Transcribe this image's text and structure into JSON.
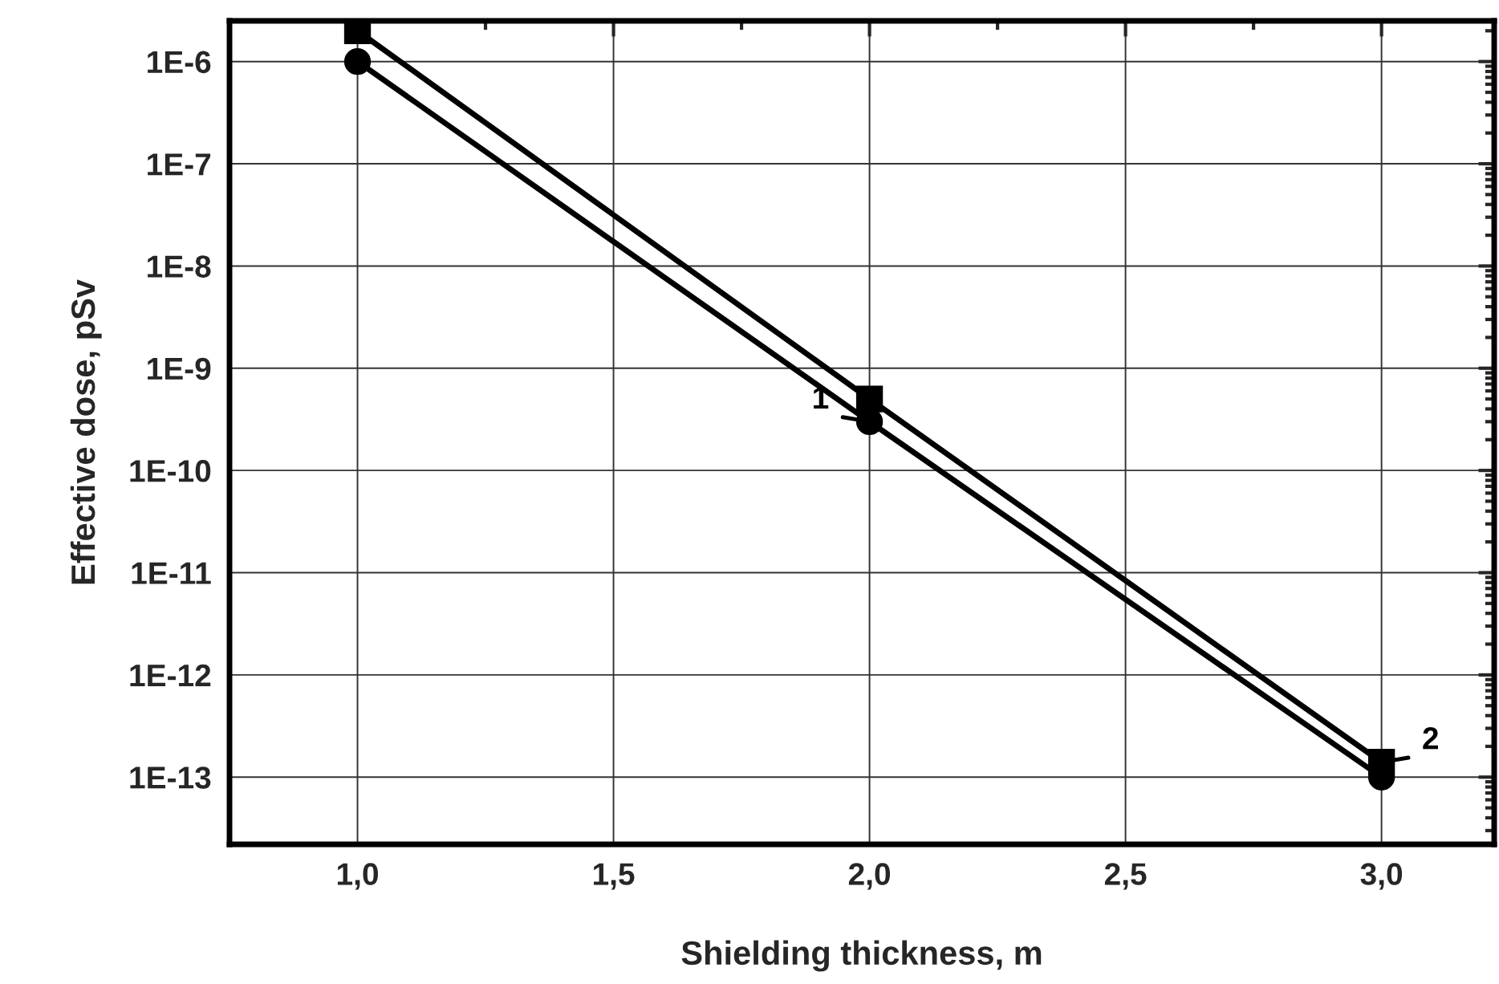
{
  "chart_data": {
    "type": "line",
    "xlabel": "Shielding thickness, m",
    "ylabel": "Effective dose, pSv",
    "log": "y",
    "grid": true,
    "x": [
      1.0,
      2.0,
      3.0
    ],
    "series": [
      {
        "name": "2",
        "color": "#000000",
        "marker": "square",
        "values": [
          2e-06,
          5e-10,
          1.4e-13
        ]
      },
      {
        "name": "1",
        "color": "#000000",
        "marker": "circle",
        "values": [
          1e-06,
          3e-10,
          1e-13
        ]
      }
    ],
    "xlim": [
      0.75,
      3.22
    ],
    "xticks": [
      {
        "value": 1.0,
        "label": "1,0"
      },
      {
        "value": 1.5,
        "label": "1,5"
      },
      {
        "value": 2.0,
        "label": "2,0"
      },
      {
        "value": 2.5,
        "label": "2,5"
      },
      {
        "value": 3.0,
        "label": "3,0"
      }
    ],
    "ylim": [
      2.2e-14,
      2.5e-06
    ],
    "yticks": [
      {
        "value": 1e-13,
        "label": "1E-13"
      },
      {
        "value": 1e-12,
        "label": "1E-12"
      },
      {
        "value": 1e-11,
        "label": "1E-11"
      },
      {
        "value": 1e-10,
        "label": "1E-10"
      },
      {
        "value": 1e-09,
        "label": "1E-9"
      },
      {
        "value": 1e-08,
        "label": "1E-8"
      },
      {
        "value": 1e-07,
        "label": "1E-7"
      },
      {
        "value": 1e-06,
        "label": "1E-6"
      }
    ]
  }
}
